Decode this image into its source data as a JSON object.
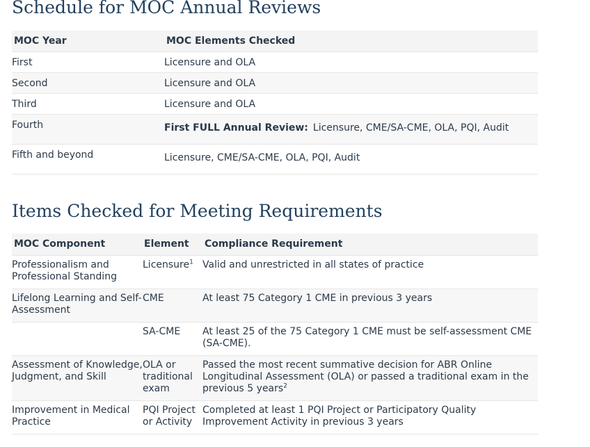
{
  "schedule": {
    "title": "Schedule for MOC Annual Reviews",
    "headers": [
      "MOC Year",
      "MOC Elements Checked"
    ],
    "rows": [
      {
        "year": "First",
        "elements": "Licensure and OLA"
      },
      {
        "year": "Second",
        "elements": "Licensure and OLA"
      },
      {
        "year": "Third",
        "elements": "Licensure and OLA"
      },
      {
        "year": "Fourth",
        "highlight": "First FULL Annual Review:",
        "elements": "Licensure, CME/SA-CME, OLA, PQI, Audit"
      },
      {
        "year": "Fifth and beyond",
        "elements": "Licensure, CME/SA-CME, OLA, PQI, Audit"
      }
    ]
  },
  "items": {
    "title": "Items Checked for Meeting Requirements",
    "headers": [
      "MOC Component",
      "Element",
      "Compliance Requirement"
    ],
    "rows": [
      {
        "component": "Professionalism and Professional Standing",
        "element": "Licensure",
        "element_sup": "1",
        "requirement": "Valid and unrestricted in all states of practice"
      },
      {
        "component": "Lifelong Learning and Self-Assessment",
        "element": "CME",
        "requirement": "At least 75 Category 1 CME in previous 3 years"
      },
      {
        "component": "",
        "element": "SA-CME",
        "requirement": "At least 25 of the 75 Category 1 CME must be self-assessment CME (SA-CME)."
      },
      {
        "component": "Assessment of Knowledge, Judgment, and Skill",
        "element": "OLA or traditional exam",
        "requirement": "Passed the most recent summative decision for ABR Online Longitudinal Assessment (OLA) or passed a traditional exam in the previous 5 years",
        "requirement_sup": "2"
      },
      {
        "component": "Improvement in Medical Practice",
        "element": "PQI Project or Activity",
        "requirement": "Completed at least 1 PQI Project or Participatory Quality Improvement Activity in previous 3 years"
      }
    ]
  }
}
